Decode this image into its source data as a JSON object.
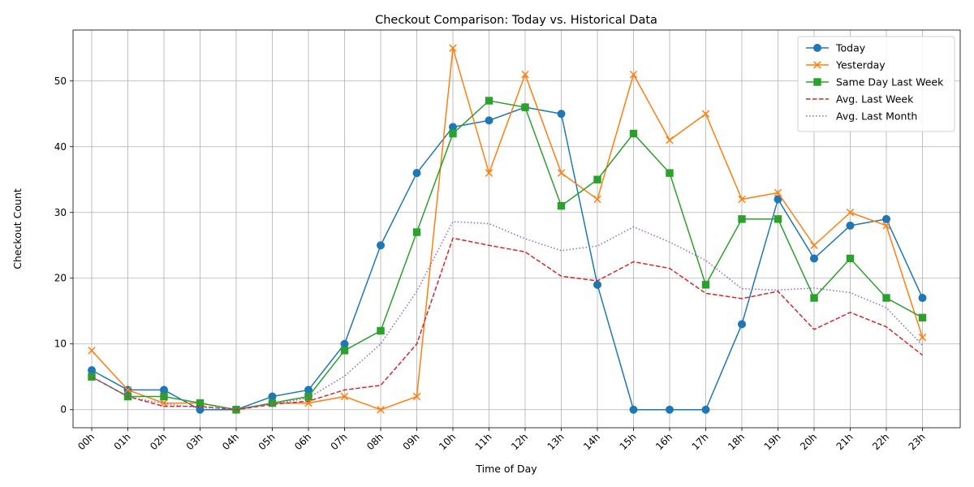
{
  "chart_data": {
    "type": "line",
    "title": "Checkout Comparison: Today vs. Historical Data",
    "xlabel": "Time of Day",
    "ylabel": "Checkout Count",
    "categories": [
      "00h",
      "01h",
      "02h",
      "03h",
      "04h",
      "05h",
      "06h",
      "07h",
      "08h",
      "09h",
      "10h",
      "11h",
      "12h",
      "13h",
      "14h",
      "15h",
      "16h",
      "17h",
      "18h",
      "19h",
      "20h",
      "21h",
      "22h",
      "23h"
    ],
    "ylim": [
      -2.75,
      57.75
    ],
    "yticks": [
      0,
      10,
      20,
      30,
      40,
      50
    ],
    "grid": true,
    "legend_position": "top-right",
    "series": [
      {
        "name": "Today",
        "color": "#1f77b4",
        "linestyle": "solid",
        "marker": "circle",
        "values": [
          6,
          3,
          3,
          0,
          0,
          2,
          3,
          10,
          25,
          36,
          43,
          44,
          46,
          45,
          19,
          0,
          0,
          0,
          13,
          32,
          23,
          28,
          29,
          17
        ]
      },
      {
        "name": "Yesterday",
        "color": "#ff7f0e",
        "linestyle": "solid",
        "marker": "x",
        "values": [
          9,
          3,
          1,
          1,
          0,
          1,
          1,
          2,
          0,
          2,
          55,
          36,
          51,
          36,
          32,
          51,
          41,
          45,
          32,
          33,
          25,
          30,
          28,
          11
        ]
      },
      {
        "name": "Same Day Last Week",
        "color": "#2ca02c",
        "linestyle": "solid",
        "marker": "square",
        "values": [
          5,
          2,
          2,
          1,
          0,
          1,
          2,
          9,
          12,
          27,
          42,
          47,
          46,
          31,
          35,
          42,
          36,
          19,
          29,
          29,
          17,
          23,
          17,
          14
        ]
      },
      {
        "name": "Avg. Last Week",
        "color": "#d62728",
        "linestyle": "dashed",
        "marker": "none",
        "values": [
          5,
          2,
          0.5,
          0.5,
          0,
          0.8,
          1.3,
          3,
          3.7,
          10,
          26.1,
          25,
          24,
          20.3,
          19.6,
          22.5,
          21.5,
          17.7,
          16.9,
          18,
          12.2,
          14.8,
          12.6,
          8.3
        ]
      },
      {
        "name": "Avg. Last Month",
        "color": "#9467bd",
        "linestyle": "dotted",
        "marker": "none",
        "values": [
          5,
          2,
          0.9,
          0.3,
          0.2,
          0.8,
          1.8,
          5.1,
          10,
          18,
          28.6,
          28.3,
          26,
          24.2,
          24.9,
          27.8,
          25.5,
          22.7,
          18.4,
          18.2,
          18.5,
          17.8,
          15.5,
          9.8
        ]
      }
    ]
  }
}
